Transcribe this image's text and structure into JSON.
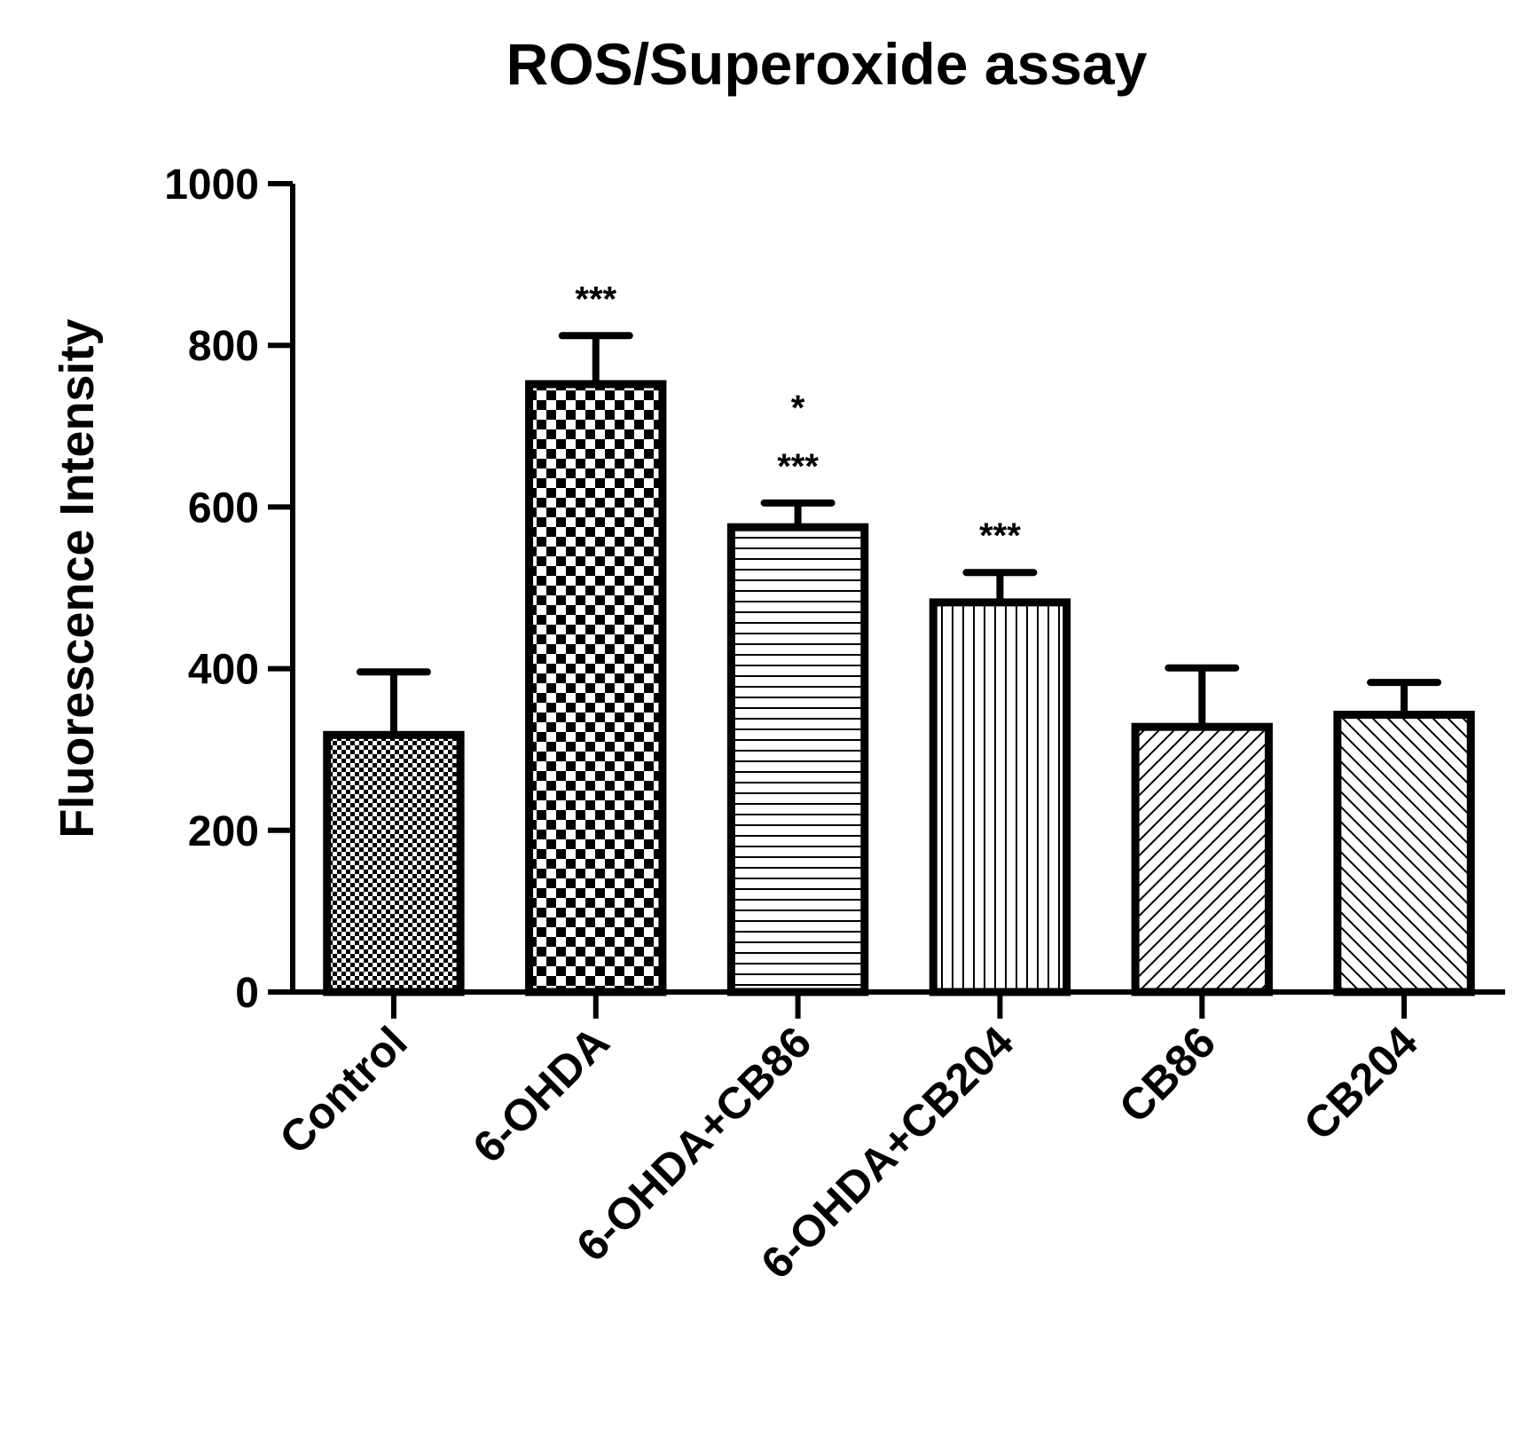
{
  "chart_data": {
    "type": "bar",
    "title": "ROS/Superoxide assay",
    "ylabel": "Fluorescence Intensity",
    "xlabel": "",
    "ylim": [
      0,
      1000
    ],
    "yticks": [
      0,
      200,
      400,
      600,
      800,
      1000
    ],
    "grid": false,
    "categories": [
      "Control",
      "6-OHDA",
      "6-OHDA+CB86",
      "6-OHDA+CB204",
      "CB86",
      "CB204"
    ],
    "values": [
      318,
      752,
      575,
      482,
      328,
      343
    ],
    "errors": [
      78,
      60,
      30,
      37,
      73,
      40
    ],
    "patterns": [
      "fine-checker",
      "checker",
      "horizontal-lines",
      "vertical-lines",
      "diagonal-lines",
      "diagonal-lines-reverse"
    ],
    "annotations": [
      {
        "category": "6-OHDA",
        "lines": [
          "***"
        ]
      },
      {
        "category": "6-OHDA+CB86",
        "lines": [
          "*",
          "***"
        ]
      },
      {
        "category": "6-OHDA+CB204",
        "lines": [
          "***"
        ]
      }
    ]
  }
}
